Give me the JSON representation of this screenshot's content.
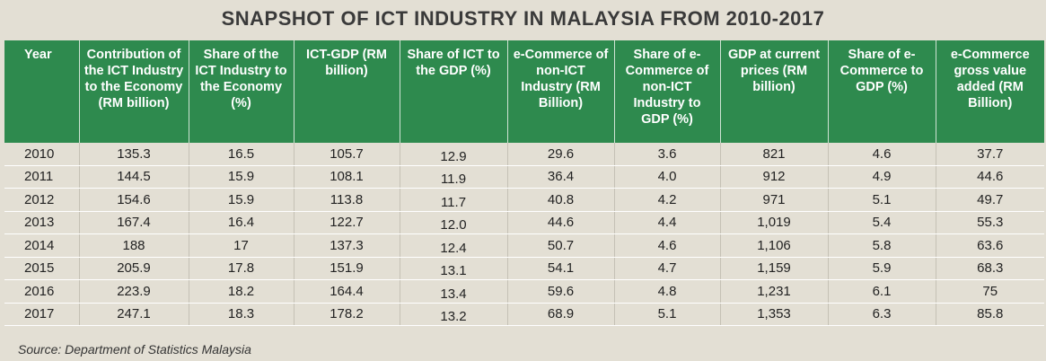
{
  "chart_data": {
    "type": "table",
    "title": "SNAPSHOT OF ICT INDUSTRY IN MALAYSIA FROM 2010-2017",
    "columns": [
      "Year",
      "Contribution of the ICT Industry to the Economy (RM billion)",
      "Share of the ICT Industry to the Economy (%)",
      "ICT-GDP (RM billion)",
      "Share of ICT to the GDP (%)",
      "e-Commerce of non-ICT Industry (RM Billion)",
      "Share of e-Commerce of non-ICT Industry to GDP (%)",
      "GDP at current prices (RM billion)",
      "Share of e-Commerce to GDP (%)",
      "e-Commerce gross value added (RM Billion)"
    ],
    "rows": [
      [
        "2010",
        "135.3",
        "16.5",
        "105.7",
        "12.9",
        "29.6",
        "3.6",
        "821",
        "4.6",
        "37.7"
      ],
      [
        "2011",
        "144.5",
        "15.9",
        "108.1",
        "11.9",
        "36.4",
        "4.0",
        "912",
        "4.9",
        "44.6"
      ],
      [
        "2012",
        "154.6",
        "15.9",
        "113.8",
        "11.7",
        "40.8",
        "4.2",
        "971",
        "5.1",
        "49.7"
      ],
      [
        "2013",
        "167.4",
        "16.4",
        "122.7",
        "12.0",
        "44.6",
        "4.4",
        "1,019",
        "5.4",
        "55.3"
      ],
      [
        "2014",
        "188",
        "17",
        "137.3",
        "12.4",
        "50.7",
        "4.6",
        "1,106",
        "5.8",
        "63.6"
      ],
      [
        "2015",
        "205.9",
        "17.8",
        "151.9",
        "13.1",
        "54.1",
        "4.7",
        "1,159",
        "5.9",
        "68.3"
      ],
      [
        "2016",
        "223.9",
        "18.2",
        "164.4",
        "13.4",
        "59.6",
        "4.8",
        "1,231",
        "6.1",
        "75"
      ],
      [
        "2017",
        "247.1",
        "18.3",
        "178.2",
        "13.2",
        "68.9",
        "5.1",
        "1,353",
        "6.3",
        "85.8"
      ]
    ],
    "source": "Source: Department of Statistics Malaysia"
  },
  "colors": {
    "header_bg": "#2e8a4e",
    "page_bg": "#e3dfd4"
  }
}
